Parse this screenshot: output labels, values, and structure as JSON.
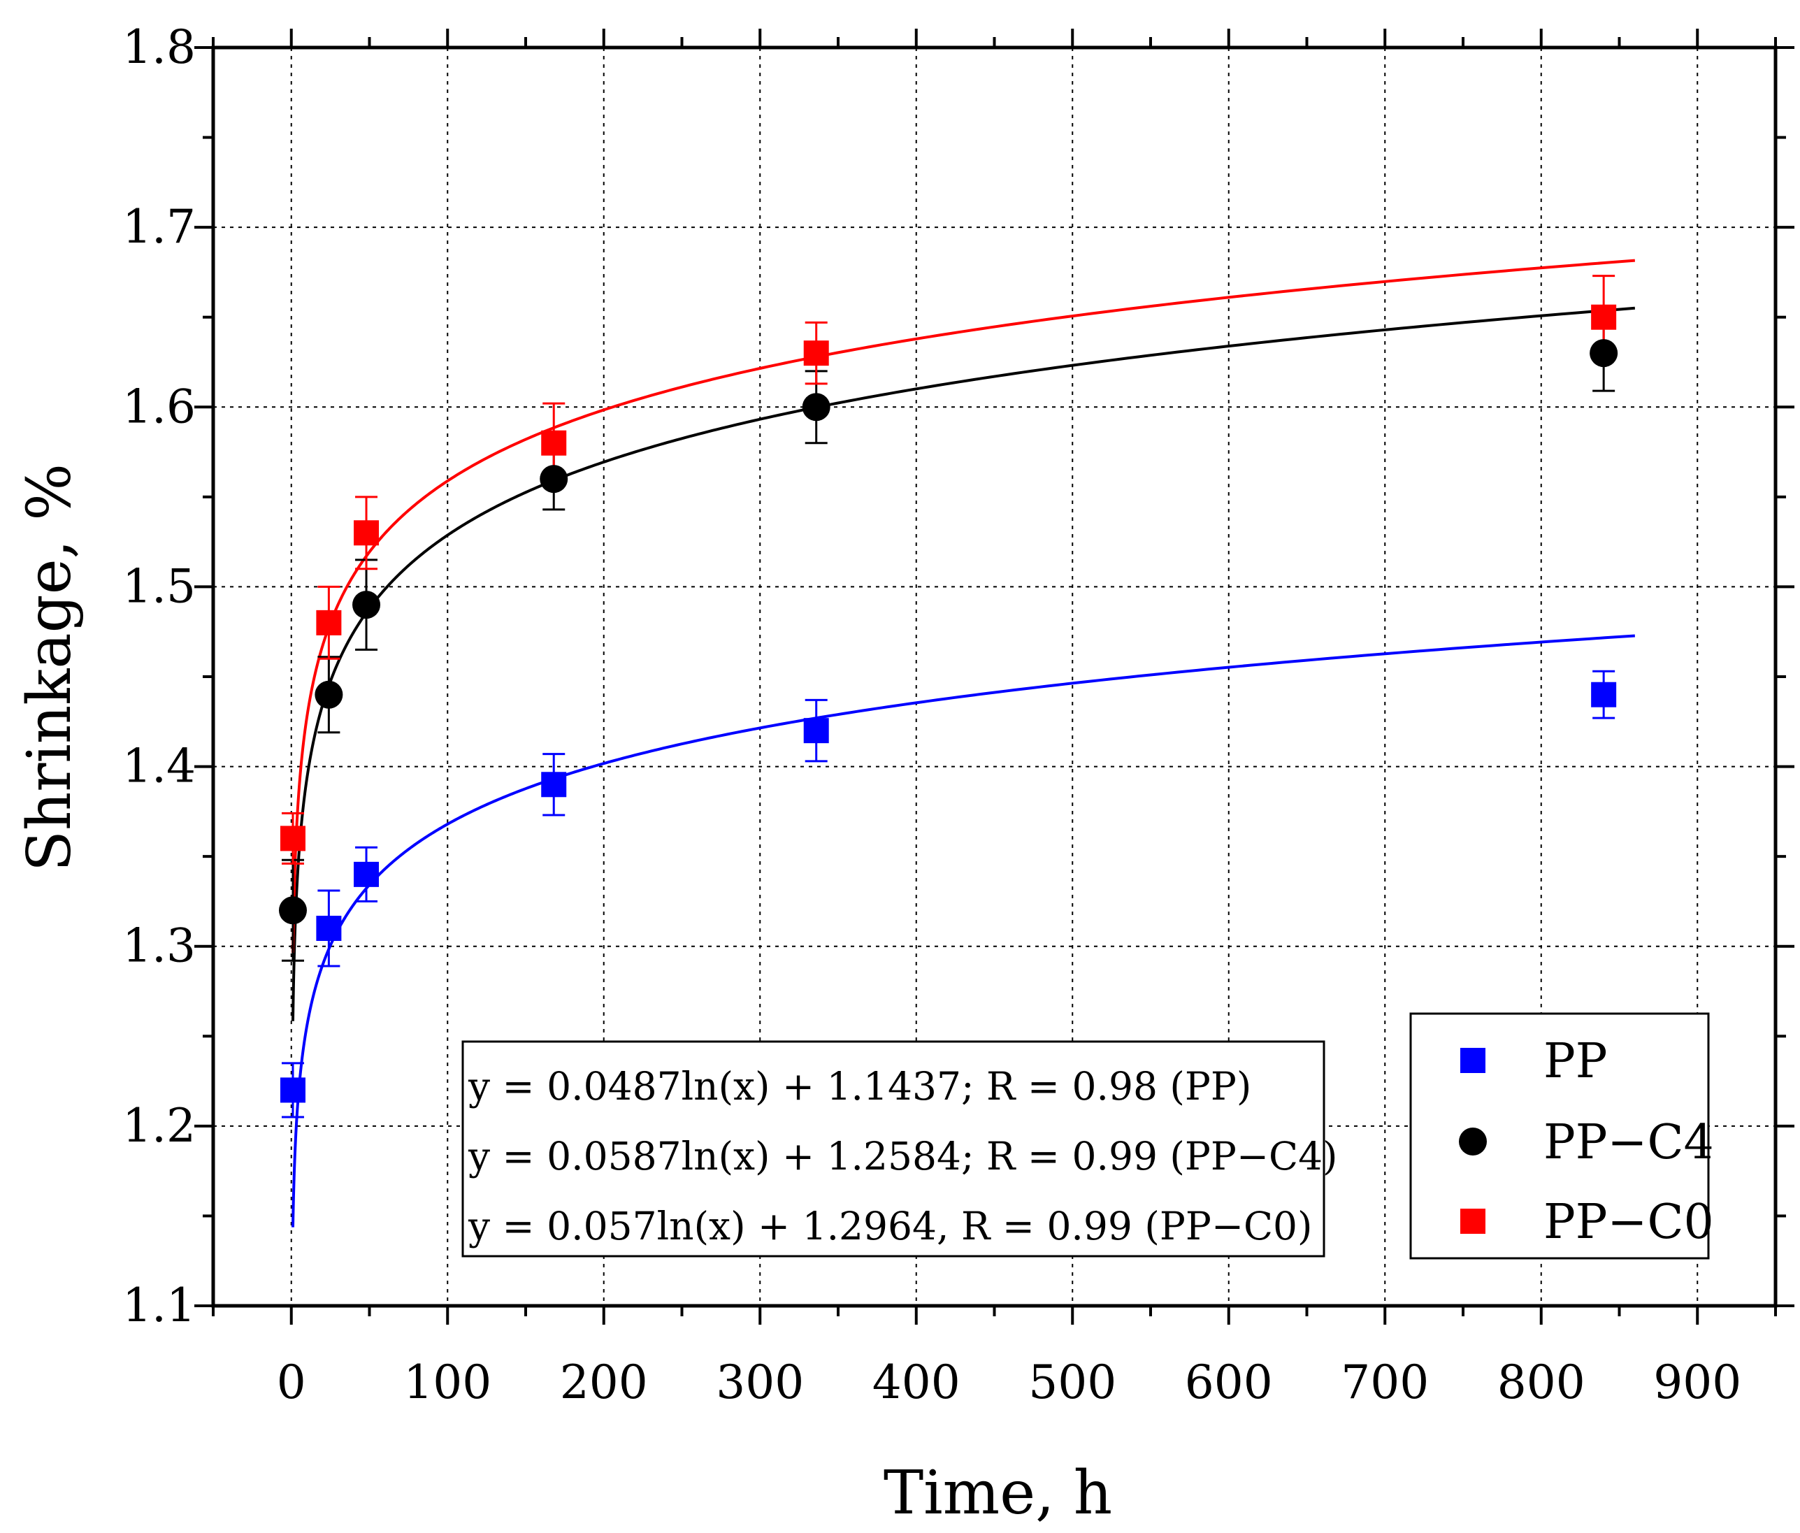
{
  "chart_data": {
    "type": "scatter",
    "xlabel": "Time, h",
    "ylabel": "Shrinkage, %",
    "xlim": [
      -50,
      950
    ],
    "ylim": [
      1.1,
      1.8
    ],
    "xticks": [
      0,
      100,
      200,
      300,
      400,
      500,
      600,
      700,
      800,
      900
    ],
    "yticks": [
      1.1,
      1.2,
      1.3,
      1.4,
      1.5,
      1.6,
      1.7,
      1.8
    ],
    "xtick_labels": [
      "0",
      "100",
      "200",
      "300",
      "400",
      "500",
      "600",
      "700",
      "800",
      "900"
    ],
    "ytick_labels": [
      "1.1",
      "1.2",
      "1.3",
      "1.4",
      "1.5",
      "1.6",
      "1.7",
      "1.8"
    ],
    "grid": true,
    "legend_position": "bottom-right",
    "equations": [
      "y = 0.0487ln(x) + 1.1437; R = 0.98 (PP)",
      "y = 0.0587ln(x) + 1.2584; R = 0.99 (PP−C4)",
      "y = 0.057ln(x) + 1.2964, R = 0.99 (PP−C0)"
    ],
    "series": [
      {
        "name": "PP",
        "marker": "square",
        "color": "#0000ff",
        "x": [
          1,
          24,
          48,
          168,
          336,
          840
        ],
        "y": [
          1.22,
          1.31,
          1.34,
          1.39,
          1.42,
          1.44
        ],
        "error": [
          0.015,
          0.021,
          0.015,
          0.017,
          0.017,
          0.013
        ],
        "fit": {
          "a": 0.0487,
          "b": 1.1437,
          "x_range": [
            1,
            860
          ]
        }
      },
      {
        "name": "PP−C4",
        "marker": "circle",
        "color": "#000000",
        "x": [
          1,
          24,
          48,
          168,
          336,
          840
        ],
        "y": [
          1.32,
          1.44,
          1.49,
          1.56,
          1.6,
          1.63
        ],
        "error": [
          0.028,
          0.021,
          0.025,
          0.017,
          0.02,
          0.021
        ],
        "fit": {
          "a": 0.0587,
          "b": 1.2584,
          "x_range": [
            1,
            860
          ]
        }
      },
      {
        "name": "PP−C0",
        "marker": "square",
        "color": "#ff0000",
        "x": [
          1,
          24,
          48,
          168,
          336,
          840
        ],
        "y": [
          1.36,
          1.48,
          1.53,
          1.58,
          1.63,
          1.65
        ],
        "error": [
          0.014,
          0.02,
          0.02,
          0.022,
          0.017,
          0.023
        ],
        "fit": {
          "a": 0.057,
          "b": 1.2964,
          "x_range": [
            1,
            860
          ]
        }
      }
    ]
  }
}
